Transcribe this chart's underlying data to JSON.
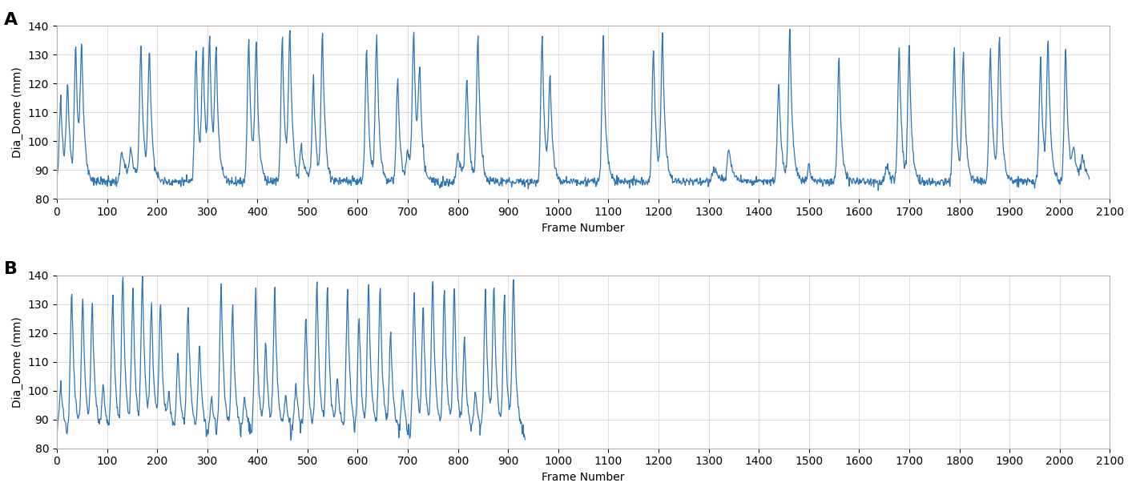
{
  "line_color": "#2E75B6",
  "line_width": 0.9,
  "background_color": "#ffffff",
  "grid_color": "#d8d8d8",
  "ylabel": "Dia_Dome (mm)",
  "xlabel": "Frame Number",
  "ylim": [
    80,
    140
  ],
  "xlim": [
    0,
    2100
  ],
  "yticks": [
    80,
    90,
    100,
    110,
    120,
    130,
    140
  ],
  "xticks": [
    0,
    100,
    200,
    300,
    400,
    500,
    600,
    700,
    800,
    900,
    1000,
    1100,
    1200,
    1300,
    1400,
    1500,
    1600,
    1700,
    1800,
    1900,
    2000,
    2100
  ],
  "label_A": "A",
  "label_B": "B",
  "label_fontsize": 16,
  "axis_fontsize": 10,
  "tick_fontsize": 10,
  "figsize": [
    14.18,
    6.18
  ],
  "dpi": 100,
  "n_frames_A": 2060,
  "n_frames_B": 935
}
